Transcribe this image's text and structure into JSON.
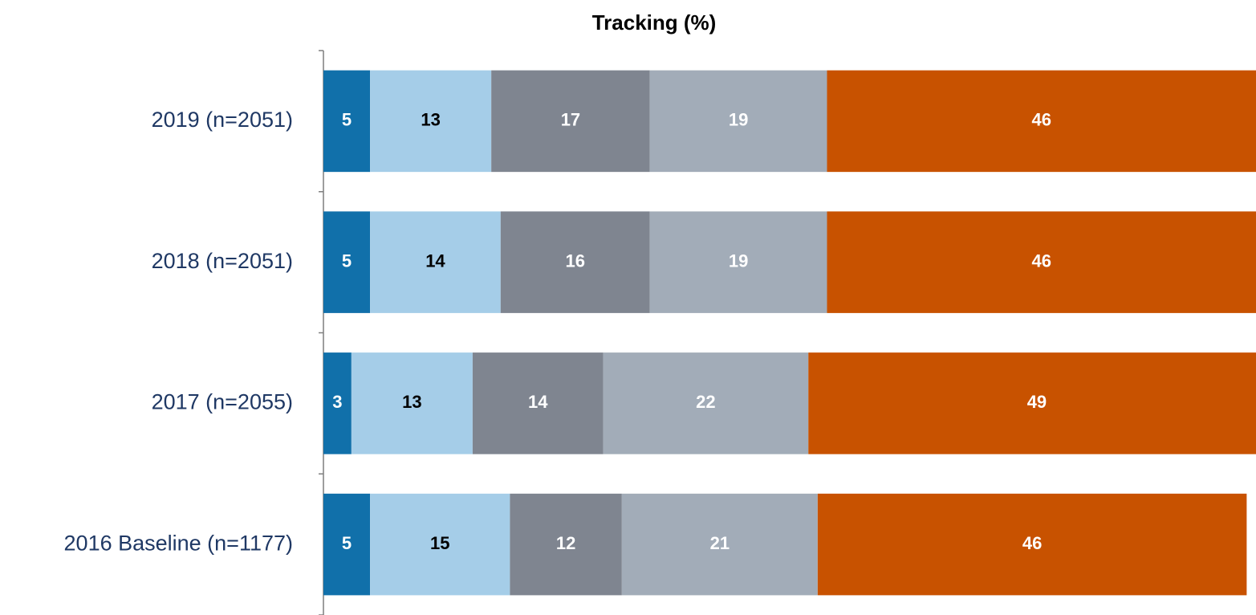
{
  "chart_data": {
    "type": "stacked-bar-horizontal",
    "title": "Tracking (%)",
    "categories": [
      "2019 (n=2051)",
      "2018 (n=2051)",
      "2017 (n=2055)",
      "2016 Baseline (n=1177)"
    ],
    "series": [
      {
        "color": "#1170aa",
        "label_color": "#ffffff",
        "values": [
          5,
          5,
          3,
          5
        ]
      },
      {
        "color": "#a5cde8",
        "label_color": "#000000",
        "values": [
          13,
          14,
          13,
          15
        ]
      },
      {
        "color": "#7f8590",
        "label_color": "#ffffff",
        "values": [
          17,
          16,
          14,
          12
        ]
      },
      {
        "color": "#a2acb8",
        "label_color": "#ffffff",
        "values": [
          19,
          19,
          22,
          21
        ]
      },
      {
        "color": "#c85200",
        "label_color": "#ffffff",
        "values": [
          46,
          46,
          49,
          46
        ]
      }
    ],
    "xlim": [
      0,
      100
    ]
  }
}
